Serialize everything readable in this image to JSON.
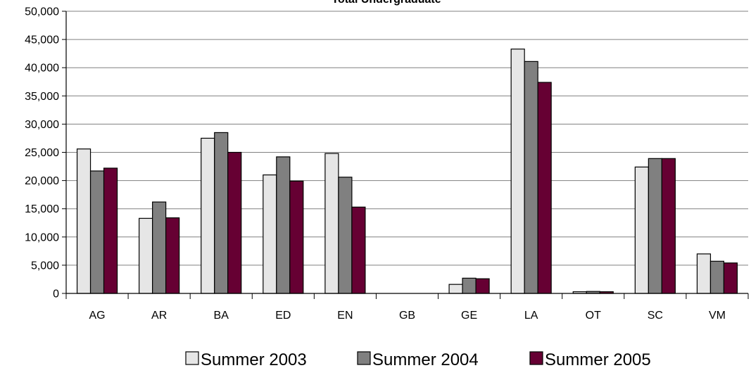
{
  "chart_data": {
    "type": "bar",
    "title": "Total Undergraduate",
    "xlabel": "",
    "ylabel": "",
    "ylim": [
      0,
      50000
    ],
    "yticks": [
      "0",
      "5,000",
      "10,000",
      "15,000",
      "20,000",
      "25,000",
      "30,000",
      "35,000",
      "40,000",
      "45,000",
      "50,000"
    ],
    "ytick_values": [
      0,
      5000,
      10000,
      15000,
      20000,
      25000,
      30000,
      35000,
      40000,
      45000,
      50000
    ],
    "grid": true,
    "legend_position": "bottom",
    "categories": [
      "AG",
      "AR",
      "BA",
      "ED",
      "EN",
      "GB",
      "GE",
      "LA",
      "OT",
      "SC",
      "VM"
    ],
    "series": [
      {
        "name": "Summer 2003",
        "color": "#e6e6e6",
        "values": [
          25600,
          13300,
          27500,
          21000,
          24800,
          0,
          1600,
          43300,
          300,
          22400,
          7000
        ]
      },
      {
        "name": "Summer 2004",
        "color": "#808080",
        "values": [
          21700,
          16200,
          28500,
          24200,
          20600,
          0,
          2700,
          41100,
          350,
          23900,
          5700
        ]
      },
      {
        "name": "Summer 2005",
        "color": "#660033",
        "values": [
          22200,
          13400,
          25000,
          19900,
          15300,
          0,
          2600,
          37400,
          300,
          23900,
          5400
        ]
      }
    ]
  }
}
